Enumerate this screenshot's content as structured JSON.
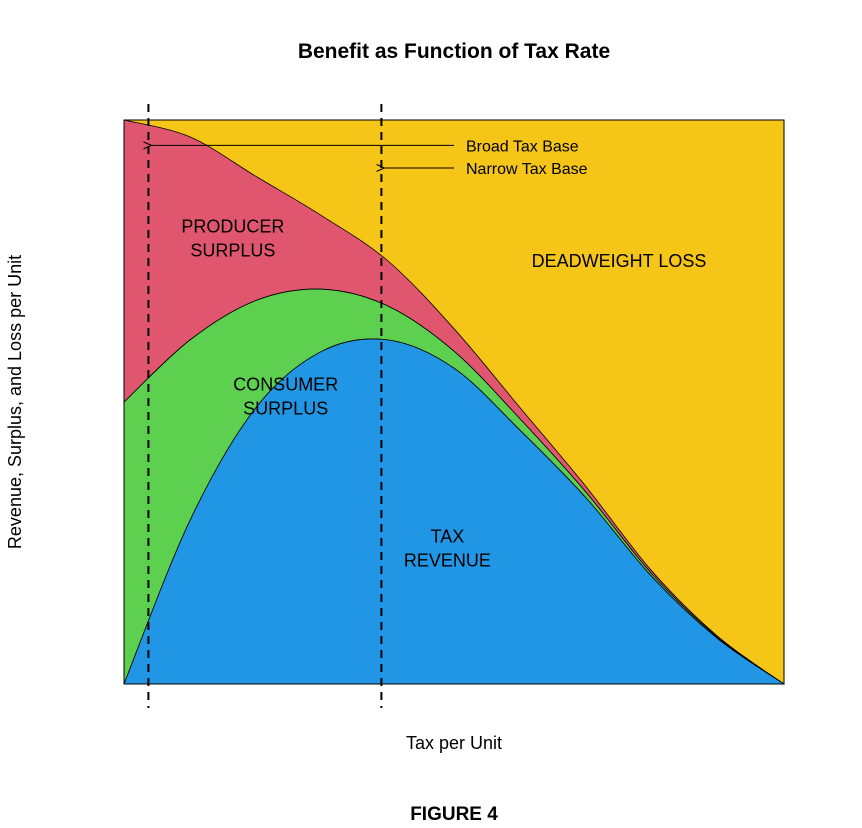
{
  "chart_data": {
    "type": "area",
    "title": "Benefit as Function of Tax Rate",
    "xlabel": "Tax per Unit",
    "ylabel": "Revenue, Surplus, and Loss per Unit",
    "figure_label": "FIGURE 4",
    "xlim": [
      0,
      1
    ],
    "ylim": [
      0,
      1
    ],
    "axes_ticks": "none",
    "series": [
      {
        "name": "TAX REVENUE",
        "color": "#2196E4",
        "x": [
          0,
          0.1,
          0.2,
          0.3,
          0.4,
          0.5,
          0.6,
          0.7,
          0.8,
          0.9,
          1.0
        ],
        "values": [
          0,
          0.29,
          0.49,
          0.59,
          0.61,
          0.56,
          0.45,
          0.33,
          0.19,
          0.08,
          0
        ]
      },
      {
        "name": "CONSUMER SURPLUS",
        "color": "#5ED04F",
        "x": [
          0,
          0.1,
          0.2,
          0.3,
          0.4,
          0.5,
          0.6,
          0.7,
          0.8,
          0.9,
          1.0
        ],
        "values": [
          0.5,
          0.32,
          0.19,
          0.11,
          0.06,
          0.03,
          0.02,
          0.01,
          0.005,
          0.002,
          0
        ]
      },
      {
        "name": "PRODUCER SURPLUS",
        "color": "#E0566E",
        "x": [
          0,
          0.1,
          0.2,
          0.3,
          0.4,
          0.5,
          0.6,
          0.7,
          0.8,
          0.9,
          1.0
        ],
        "values": [
          0.5,
          0.36,
          0.22,
          0.13,
          0.08,
          0.04,
          0.02,
          0.01,
          0.005,
          0.002,
          0
        ]
      },
      {
        "name": "DEADWEIGHT LOSS",
        "color": "#F5C518",
        "fill_to": 1.0
      }
    ],
    "region_labels": [
      {
        "lines": [
          "PRODUCER",
          "SURPLUS"
        ],
        "x": 0.165,
        "y": 0.79
      },
      {
        "lines": [
          "CONSUMER",
          "SURPLUS"
        ],
        "x": 0.245,
        "y": 0.51
      },
      {
        "lines": [
          "DEADWEIGHT LOSS"
        ],
        "x": 0.75,
        "y": 0.75
      },
      {
        "lines": [
          "TAX",
          "REVENUE"
        ],
        "x": 0.49,
        "y": 0.24
      }
    ],
    "vlines": [
      {
        "name": "Broad Tax Base",
        "x": 0.037,
        "style": "dashed",
        "label_y": 0.955
      },
      {
        "name": "Narrow Tax Base",
        "x": 0.39,
        "style": "dashed",
        "label_y": 0.915
      }
    ]
  }
}
